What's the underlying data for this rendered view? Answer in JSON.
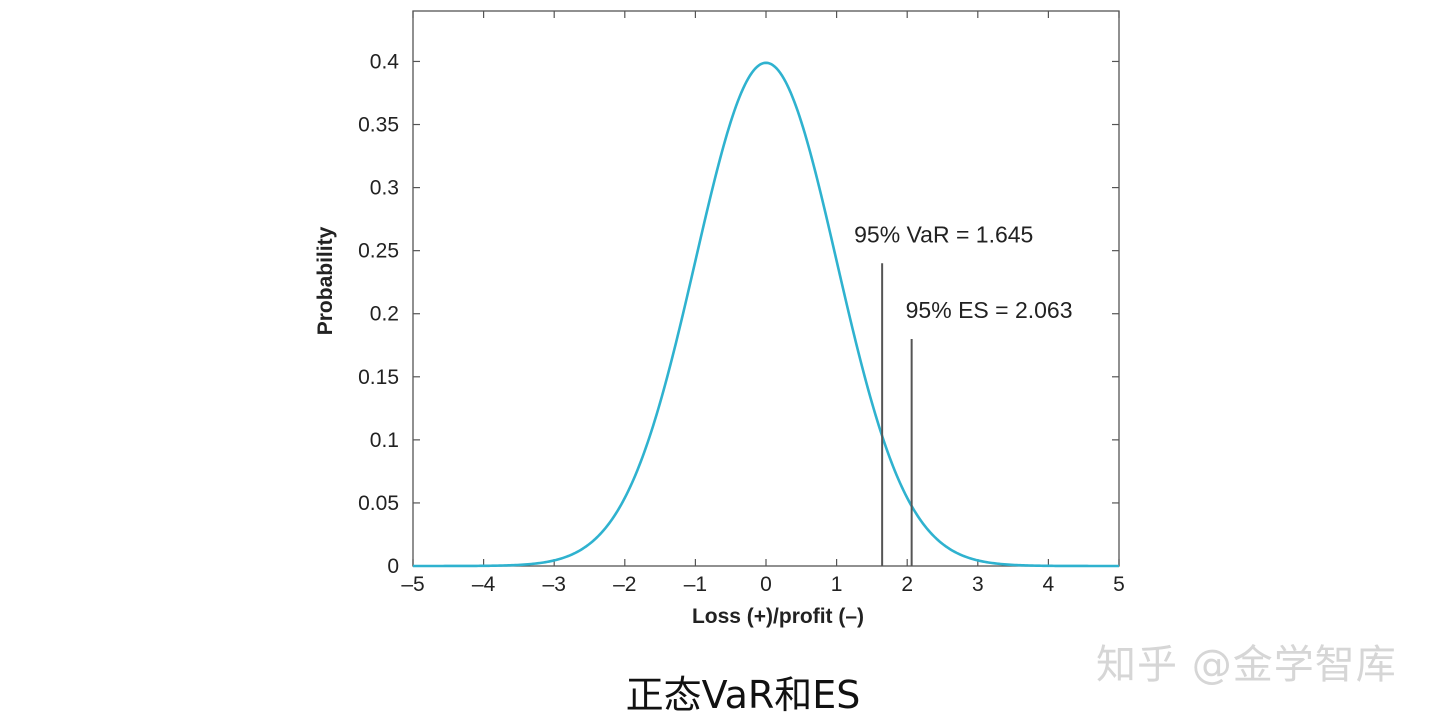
{
  "chart_data": {
    "type": "line",
    "title": "",
    "xlabel": "Loss (+)/profit (–)",
    "ylabel": "Probability",
    "xlim": [
      -5,
      5
    ],
    "ylim": [
      0,
      0.44
    ],
    "x_ticks": [
      -5,
      -4,
      -3,
      -2,
      -1,
      0,
      1,
      2,
      3,
      4,
      5
    ],
    "x_tick_labels": [
      "–5",
      "–4",
      "–3",
      "–2",
      "–1",
      "0",
      "1",
      "2",
      "3",
      "4",
      "5"
    ],
    "y_ticks": [
      0,
      0.05,
      0.1,
      0.15,
      0.2,
      0.25,
      0.3,
      0.35,
      0.4
    ],
    "y_tick_labels": [
      "0",
      "0.05",
      "0.1",
      "0.15",
      "0.2",
      "0.25",
      "0.3",
      "0.35",
      "0.4"
    ],
    "grid": false,
    "series": [
      {
        "distribution": "standard normal",
        "mean": 0,
        "std": 1,
        "color": "#2fb2cf"
      }
    ],
    "vlines": [
      {
        "x": 1.645,
        "y_top": 0.24,
        "label": "95% VaR = 1.645"
      },
      {
        "x": 2.063,
        "y_top": 0.18,
        "label": "95% ES = 2.063"
      }
    ],
    "line_color": "#555555"
  },
  "caption": "正态VaR和ES",
  "watermark": "知乎 @金学智库"
}
